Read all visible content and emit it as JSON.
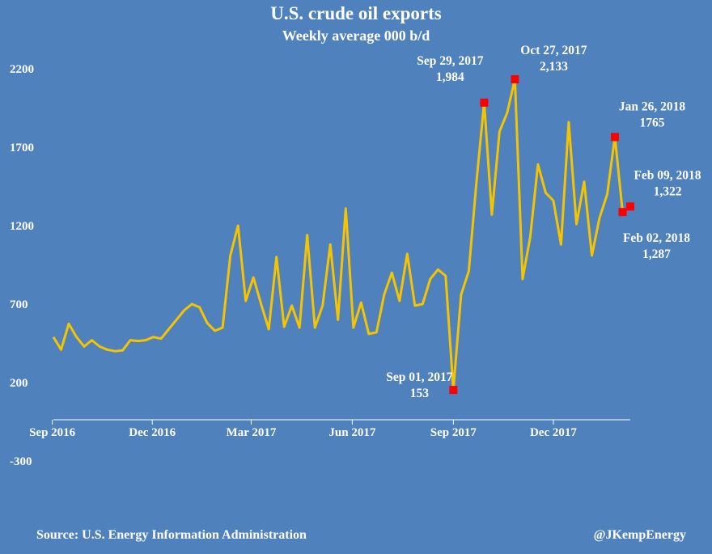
{
  "chart_data": {
    "type": "line",
    "title": "U.S. crude oil exports",
    "subtitle": "Weekly average 000 b/d",
    "xlabel": "",
    "ylabel": "",
    "ylim": [
      -300,
      2200
    ],
    "y_ticks": [
      2200,
      1700,
      1200,
      700,
      200,
      -300
    ],
    "x_ticks": [
      "Sep 2016",
      "Dec 2016",
      "Mar 2017",
      "Jun 2017",
      "Sep 2017",
      "Dec 2017"
    ],
    "x_range": [
      "2016-09-02",
      "2018-02-09"
    ],
    "grid": false,
    "legend": "none",
    "line_color": "#f5c400",
    "marker_color": "#ff0000",
    "series": [
      {
        "x": [
          "2016-09-02",
          "2016-09-09",
          "2016-09-16",
          "2016-09-23",
          "2016-09-30",
          "2016-10-07",
          "2016-10-14",
          "2016-10-21",
          "2016-10-28",
          "2016-11-04",
          "2016-11-11",
          "2016-11-18",
          "2016-11-25",
          "2016-12-02",
          "2016-12-09",
          "2016-12-16",
          "2016-12-23",
          "2016-12-30",
          "2017-01-06",
          "2017-01-13",
          "2017-01-20",
          "2017-01-27",
          "2017-02-03",
          "2017-02-10",
          "2017-02-17",
          "2017-02-24",
          "2017-03-03",
          "2017-03-10",
          "2017-03-17",
          "2017-03-24",
          "2017-03-31",
          "2017-04-07",
          "2017-04-14",
          "2017-04-21",
          "2017-04-28",
          "2017-05-05",
          "2017-05-12",
          "2017-05-19",
          "2017-05-26",
          "2017-06-02",
          "2017-06-09",
          "2017-06-16",
          "2017-06-23",
          "2017-06-30",
          "2017-07-07",
          "2017-07-14",
          "2017-07-21",
          "2017-07-28",
          "2017-08-04",
          "2017-08-11",
          "2017-08-18",
          "2017-08-25",
          "2017-09-01",
          "2017-09-08",
          "2017-09-15",
          "2017-09-22",
          "2017-09-29",
          "2017-10-06",
          "2017-10-13",
          "2017-10-20",
          "2017-10-27",
          "2017-11-03",
          "2017-11-10",
          "2017-11-17",
          "2017-11-24",
          "2017-12-01",
          "2017-12-08",
          "2017-12-15",
          "2017-12-22",
          "2017-12-29",
          "2018-01-05",
          "2018-01-12",
          "2018-01-19",
          "2018-01-26",
          "2018-02-02",
          "2018-02-09"
        ],
        "values": [
          490,
          410,
          575,
          490,
          430,
          470,
          430,
          410,
          400,
          405,
          470,
          465,
          470,
          490,
          480,
          540,
          600,
          660,
          700,
          680,
          580,
          530,
          550,
          1010,
          1200,
          720,
          870,
          700,
          540,
          1000,
          555,
          690,
          550,
          1140,
          550,
          690,
          1080,
          600,
          1310,
          550,
          710,
          510,
          520,
          760,
          900,
          720,
          1020,
          690,
          700,
          860,
          920,
          880,
          153,
          760,
          910,
          1480,
          1984,
          1270,
          1800,
          1920,
          2133,
          860,
          1130,
          1590,
          1410,
          1360,
          1080,
          1860,
          1210,
          1480,
          1010,
          1250,
          1400,
          1765,
          1287,
          1322
        ]
      }
    ],
    "annotations": [
      {
        "date": "2017-09-29",
        "value": 1984,
        "label": "Sep 29, 2017",
        "value_label": "1,984"
      },
      {
        "date": "2017-10-27",
        "value": 2133,
        "label": "Oct 27, 2017",
        "value_label": "2,133"
      },
      {
        "date": "2018-01-26",
        "value": 1765,
        "label": "Jan 26, 2018",
        "value_label": "1765"
      },
      {
        "date": "2018-02-09",
        "value": 1322,
        "label": "Feb 09, 2018",
        "value_label": "1,322"
      },
      {
        "date": "2018-02-02",
        "value": 1287,
        "label": "Feb 02, 2018",
        "value_label": "1,287"
      },
      {
        "date": "2017-09-01",
        "value": 153,
        "label": "Sep 01, 2017",
        "value_label": "153"
      }
    ]
  },
  "footer": {
    "source": "Source: U.S. Energy Information Administration",
    "credit": "@JKempEnergy"
  }
}
